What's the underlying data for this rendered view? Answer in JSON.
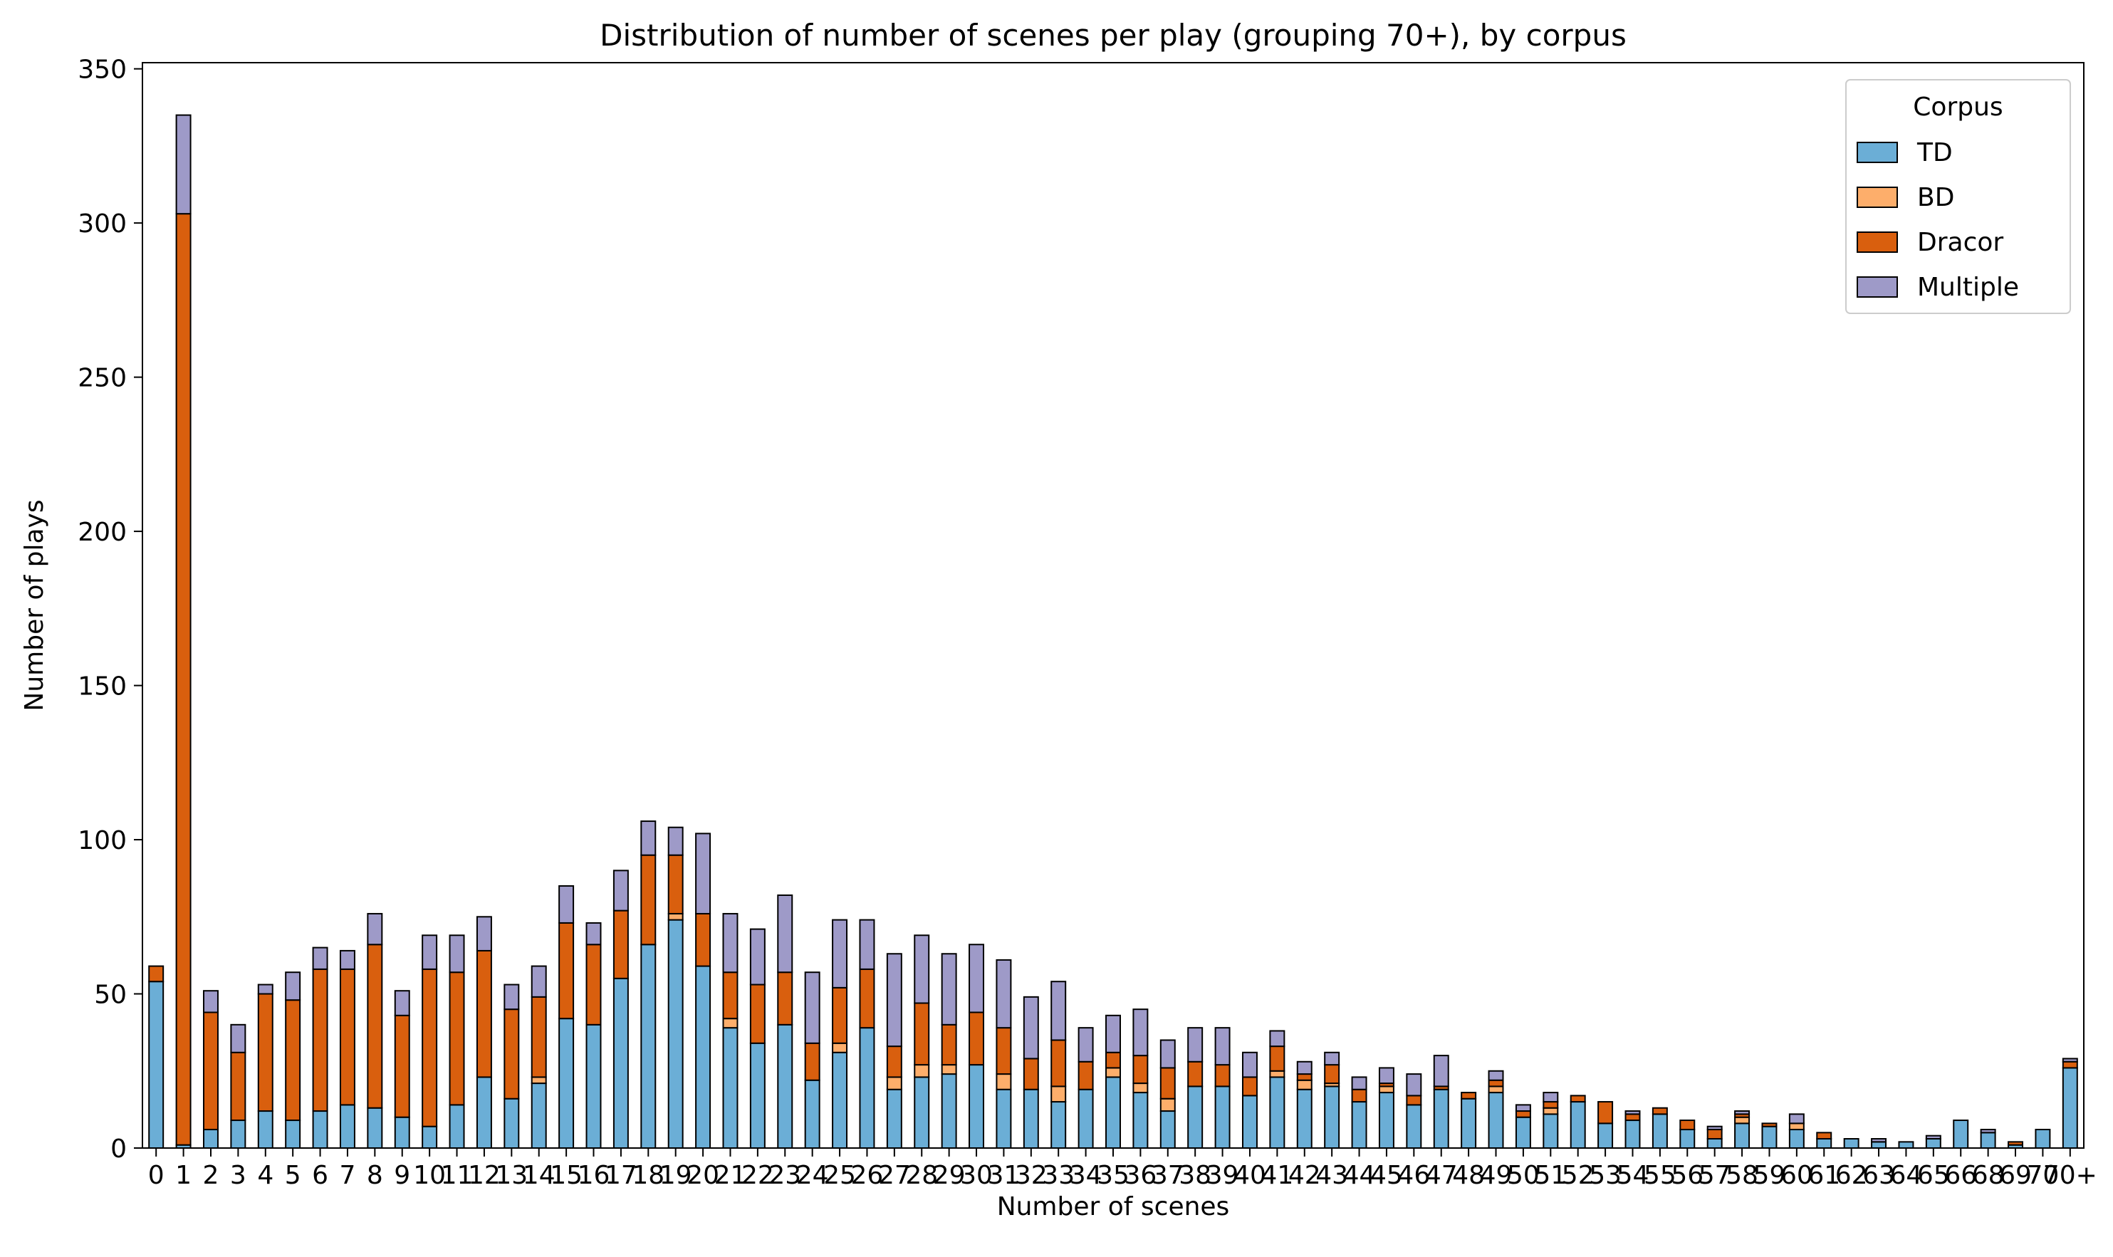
{
  "chart_data": {
    "type": "bar",
    "stacked": true,
    "title": "Distribution of number of scenes per play (grouping 70+), by corpus",
    "xlabel": "Number of scenes",
    "ylabel": "Number of plays",
    "ylim": [
      0,
      352
    ],
    "yticks": [
      0,
      50,
      100,
      150,
      200,
      250,
      300,
      350
    ],
    "grid": false,
    "legend": {
      "title": "Corpus",
      "placement": "top-right"
    },
    "categories": [
      "0",
      "1",
      "2",
      "3",
      "4",
      "5",
      "6",
      "7",
      "8",
      "9",
      "10",
      "11",
      "12",
      "13",
      "14",
      "15",
      "16",
      "17",
      "18",
      "19",
      "20",
      "21",
      "22",
      "23",
      "24",
      "25",
      "26",
      "27",
      "28",
      "29",
      "30",
      "31",
      "32",
      "33",
      "34",
      "35",
      "36",
      "37",
      "38",
      "39",
      "40",
      "41",
      "42",
      "43",
      "44",
      "45",
      "46",
      "47",
      "48",
      "49",
      "50",
      "51",
      "52",
      "53",
      "54",
      "55",
      "56",
      "57",
      "58",
      "59",
      "60",
      "61",
      "62",
      "63",
      "64",
      "65",
      "66",
      "68",
      "69",
      "70",
      "70+"
    ],
    "series": [
      {
        "name": "TD",
        "color": "#6baed6",
        "values": [
          54,
          1,
          6,
          9,
          12,
          9,
          12,
          14,
          13,
          10,
          7,
          14,
          23,
          16,
          21,
          42,
          40,
          55,
          66,
          74,
          59,
          39,
          34,
          40,
          22,
          31,
          39,
          19,
          23,
          24,
          27,
          19,
          19,
          15,
          19,
          23,
          18,
          12,
          20,
          20,
          17,
          23,
          19,
          20,
          15,
          18,
          14,
          19,
          16,
          18,
          10,
          11,
          15,
          8,
          9,
          11,
          6,
          3,
          8,
          7,
          6,
          3,
          3,
          2,
          2,
          3,
          9,
          5,
          1,
          6,
          26
        ]
      },
      {
        "name": "BD",
        "color": "#fdae6b",
        "values": [
          0,
          0,
          0,
          0,
          0,
          0,
          0,
          0,
          0,
          0,
          0,
          0,
          0,
          0,
          2,
          0,
          0,
          0,
          0,
          2,
          0,
          3,
          0,
          0,
          0,
          3,
          0,
          4,
          4,
          3,
          0,
          5,
          0,
          5,
          0,
          3,
          3,
          4,
          0,
          0,
          0,
          2,
          3,
          1,
          0,
          2,
          0,
          0,
          0,
          2,
          0,
          2,
          0,
          0,
          0,
          0,
          0,
          0,
          2,
          0,
          2,
          0,
          0,
          0,
          0,
          0,
          0,
          0,
          0,
          0,
          0
        ]
      },
      {
        "name": "Dracor",
        "color": "#d95f0e",
        "values": [
          5,
          302,
          38,
          22,
          38,
          39,
          46,
          44,
          53,
          33,
          51,
          43,
          41,
          29,
          26,
          31,
          26,
          22,
          29,
          19,
          17,
          15,
          19,
          17,
          12,
          18,
          19,
          10,
          20,
          13,
          17,
          15,
          10,
          15,
          9,
          5,
          9,
          10,
          8,
          7,
          6,
          8,
          2,
          6,
          4,
          1,
          3,
          1,
          2,
          2,
          2,
          2,
          2,
          7,
          2,
          2,
          3,
          3,
          1,
          1,
          0,
          2,
          0,
          0,
          0,
          0,
          0,
          0,
          1,
          0,
          2
        ]
      },
      {
        "name": "Multiple",
        "color": "#9e9ac8",
        "values": [
          0,
          32,
          7,
          9,
          3,
          9,
          7,
          6,
          10,
          8,
          11,
          12,
          11,
          8,
          10,
          12,
          7,
          13,
          11,
          9,
          26,
          19,
          18,
          25,
          23,
          22,
          16,
          30,
          22,
          23,
          22,
          22,
          20,
          19,
          11,
          12,
          15,
          9,
          11,
          12,
          8,
          5,
          4,
          4,
          4,
          5,
          7,
          10,
          0,
          3,
          2,
          3,
          0,
          0,
          1,
          0,
          0,
          1,
          1,
          0,
          3,
          0,
          0,
          1,
          0,
          1,
          0,
          1,
          0,
          0,
          1
        ]
      }
    ]
  }
}
